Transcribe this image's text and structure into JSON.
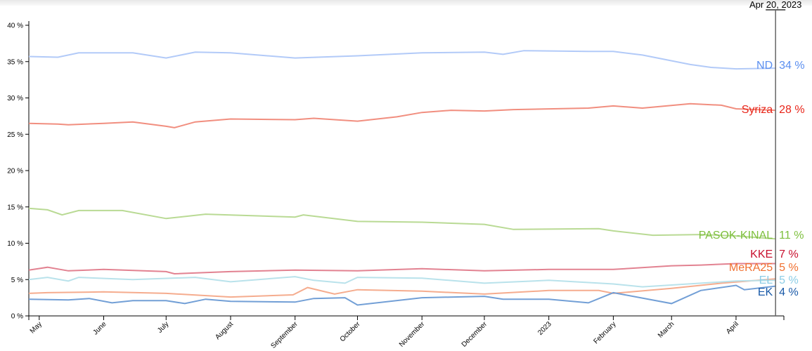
{
  "chart_data": {
    "type": "line",
    "title": "",
    "xlabel": "",
    "ylabel": "",
    "ylim": [
      0,
      40
    ],
    "xlim": [
      "2022-04-26",
      "2023-04-24"
    ],
    "grid": false,
    "y_ticks": [
      "0 %",
      "5 %",
      "10 %",
      "15 %",
      "20 %",
      "25 %",
      "30 %",
      "35 %",
      "40 %"
    ],
    "x_ticks": [
      {
        "date": "2022-05-01",
        "label": "May"
      },
      {
        "date": "2022-06-01",
        "label": "June"
      },
      {
        "date": "2022-07-01",
        "label": "July"
      },
      {
        "date": "2022-08-01",
        "label": "August"
      },
      {
        "date": "2022-09-01",
        "label": "September"
      },
      {
        "date": "2022-10-01",
        "label": "October"
      },
      {
        "date": "2022-11-01",
        "label": "November"
      },
      {
        "date": "2022-12-01",
        "label": "December"
      },
      {
        "date": "2023-01-01",
        "label": "2023"
      },
      {
        "date": "2023-02-01",
        "label": "February"
      },
      {
        "date": "2023-03-01",
        "label": "March"
      },
      {
        "date": "2023-04-01",
        "label": "April"
      }
    ],
    "marker": {
      "date": "2023-04-20",
      "label": "Apr 20, 2023"
    },
    "series": [
      {
        "name": "ND",
        "final_label": "34 %",
        "label_color": "#5b8ff0",
        "line_color": "#aec7f8",
        "points": [
          [
            "2022-04-26",
            35.7
          ],
          [
            "2022-05-10",
            35.6
          ],
          [
            "2022-05-20",
            36.2
          ],
          [
            "2022-06-15",
            36.2
          ],
          [
            "2022-07-01",
            35.5
          ],
          [
            "2022-07-15",
            36.3
          ],
          [
            "2022-08-01",
            36.2
          ],
          [
            "2022-09-01",
            35.5
          ],
          [
            "2022-10-01",
            35.8
          ],
          [
            "2022-11-01",
            36.2
          ],
          [
            "2022-12-01",
            36.3
          ],
          [
            "2022-12-10",
            36.0
          ],
          [
            "2022-12-20",
            36.5
          ],
          [
            "2023-01-20",
            36.4
          ],
          [
            "2023-02-01",
            36.4
          ],
          [
            "2023-02-15",
            35.9
          ],
          [
            "2023-03-10",
            34.6
          ],
          [
            "2023-03-20",
            34.2
          ],
          [
            "2023-04-01",
            34.0
          ],
          [
            "2023-04-20",
            34.1
          ]
        ]
      },
      {
        "name": "Syriza",
        "final_label": "28 %",
        "label_color": "#e8251a",
        "line_color": "#f08878",
        "points": [
          [
            "2022-04-26",
            26.5
          ],
          [
            "2022-05-10",
            26.4
          ],
          [
            "2022-05-15",
            26.3
          ],
          [
            "2022-06-01",
            26.5
          ],
          [
            "2022-06-15",
            26.7
          ],
          [
            "2022-07-01",
            26.1
          ],
          [
            "2022-07-05",
            25.9
          ],
          [
            "2022-07-15",
            26.7
          ],
          [
            "2022-08-01",
            27.1
          ],
          [
            "2022-09-01",
            27.0
          ],
          [
            "2022-09-10",
            27.2
          ],
          [
            "2022-10-01",
            26.8
          ],
          [
            "2022-10-20",
            27.4
          ],
          [
            "2022-11-01",
            28.0
          ],
          [
            "2022-11-15",
            28.3
          ],
          [
            "2022-12-01",
            28.2
          ],
          [
            "2022-12-15",
            28.4
          ],
          [
            "2023-01-20",
            28.6
          ],
          [
            "2023-02-01",
            28.9
          ],
          [
            "2023-02-15",
            28.6
          ],
          [
            "2023-03-10",
            29.2
          ],
          [
            "2023-03-25",
            29.0
          ],
          [
            "2023-04-01",
            28.5
          ],
          [
            "2023-04-20",
            28.3
          ]
        ]
      },
      {
        "name": "PASOK-KINAL",
        "final_label": "11 %",
        "label_color": "#7dbf3c",
        "line_color": "#b5d88e",
        "points": [
          [
            "2022-04-26",
            14.8
          ],
          [
            "2022-05-05",
            14.6
          ],
          [
            "2022-05-12",
            13.9
          ],
          [
            "2022-05-20",
            14.5
          ],
          [
            "2022-06-10",
            14.5
          ],
          [
            "2022-07-01",
            13.4
          ],
          [
            "2022-07-20",
            14.0
          ],
          [
            "2022-09-01",
            13.6
          ],
          [
            "2022-09-05",
            13.9
          ],
          [
            "2022-10-01",
            13.0
          ],
          [
            "2022-11-01",
            12.9
          ],
          [
            "2022-12-01",
            12.6
          ],
          [
            "2022-12-15",
            11.9
          ],
          [
            "2023-01-25",
            12.0
          ],
          [
            "2023-02-01",
            11.7
          ],
          [
            "2023-02-20",
            11.1
          ],
          [
            "2023-03-15",
            11.2
          ],
          [
            "2023-04-01",
            11.0
          ],
          [
            "2023-04-20",
            10.6
          ]
        ]
      },
      {
        "name": "KKE",
        "final_label": "7 %",
        "label_color": "#c8102e",
        "line_color": "#e07b8b",
        "points": [
          [
            "2022-04-26",
            6.3
          ],
          [
            "2022-05-05",
            6.7
          ],
          [
            "2022-05-15",
            6.2
          ],
          [
            "2022-06-01",
            6.4
          ],
          [
            "2022-07-01",
            6.1
          ],
          [
            "2022-07-05",
            5.8
          ],
          [
            "2022-08-01",
            6.1
          ],
          [
            "2022-09-01",
            6.3
          ],
          [
            "2022-10-01",
            6.2
          ],
          [
            "2022-11-01",
            6.5
          ],
          [
            "2022-12-01",
            6.2
          ],
          [
            "2023-01-01",
            6.4
          ],
          [
            "2023-02-01",
            6.4
          ],
          [
            "2023-03-01",
            6.9
          ],
          [
            "2023-03-15",
            7.0
          ],
          [
            "2023-04-01",
            7.2
          ],
          [
            "2023-04-20",
            7.2
          ]
        ]
      },
      {
        "name": "MeRA25",
        "final_label": "5 %",
        "label_color": "#f07030",
        "line_color": "#f4a888",
        "points": [
          [
            "2022-04-26",
            3.1
          ],
          [
            "2022-05-05",
            3.2
          ],
          [
            "2022-06-01",
            3.3
          ],
          [
            "2022-07-01",
            3.1
          ],
          [
            "2022-08-01",
            2.6
          ],
          [
            "2022-08-31",
            2.9
          ],
          [
            "2022-09-07",
            3.9
          ],
          [
            "2022-09-20",
            3.0
          ],
          [
            "2022-10-01",
            3.6
          ],
          [
            "2022-11-01",
            3.4
          ],
          [
            "2022-12-01",
            3.0
          ],
          [
            "2023-01-01",
            3.5
          ],
          [
            "2023-01-25",
            3.5
          ],
          [
            "2023-02-01",
            3.1
          ],
          [
            "2023-03-01",
            3.8
          ],
          [
            "2023-03-25",
            4.5
          ],
          [
            "2023-04-20",
            5.1
          ]
        ]
      },
      {
        "name": "EL",
        "final_label": "5 %",
        "label_color": "#8ccde6",
        "line_color": "#b5e0ea",
        "points": [
          [
            "2022-04-26",
            5.0
          ],
          [
            "2022-05-05",
            5.3
          ],
          [
            "2022-05-15",
            4.8
          ],
          [
            "2022-05-20",
            5.3
          ],
          [
            "2022-06-15",
            5.0
          ],
          [
            "2022-07-15",
            5.3
          ],
          [
            "2022-08-01",
            4.7
          ],
          [
            "2022-09-01",
            5.4
          ],
          [
            "2022-09-10",
            4.9
          ],
          [
            "2022-09-25",
            4.5
          ],
          [
            "2022-10-01",
            5.3
          ],
          [
            "2022-11-01",
            5.2
          ],
          [
            "2022-12-01",
            4.5
          ],
          [
            "2023-01-01",
            4.9
          ],
          [
            "2023-02-01",
            4.4
          ],
          [
            "2023-02-15",
            4.0
          ],
          [
            "2023-03-15",
            4.5
          ],
          [
            "2023-04-01",
            4.8
          ],
          [
            "2023-04-20",
            4.9
          ]
        ]
      },
      {
        "name": "EK",
        "final_label": "4 %",
        "label_color": "#1a5aa8",
        "line_color": "#6a9ad4",
        "points": [
          [
            "2022-04-26",
            2.3
          ],
          [
            "2022-05-15",
            2.2
          ],
          [
            "2022-05-25",
            2.4
          ],
          [
            "2022-06-05",
            1.8
          ],
          [
            "2022-06-15",
            2.1
          ],
          [
            "2022-07-01",
            2.1
          ],
          [
            "2022-07-10",
            1.7
          ],
          [
            "2022-07-20",
            2.3
          ],
          [
            "2022-08-01",
            2.0
          ],
          [
            "2022-09-01",
            1.9
          ],
          [
            "2022-09-10",
            2.4
          ],
          [
            "2022-09-25",
            2.5
          ],
          [
            "2022-10-01",
            1.5
          ],
          [
            "2022-11-01",
            2.5
          ],
          [
            "2022-12-01",
            2.7
          ],
          [
            "2022-12-10",
            2.3
          ],
          [
            "2023-01-01",
            2.3
          ],
          [
            "2023-01-20",
            1.8
          ],
          [
            "2023-02-01",
            3.2
          ],
          [
            "2023-03-01",
            1.7
          ],
          [
            "2023-03-15",
            3.5
          ],
          [
            "2023-04-01",
            4.2
          ],
          [
            "2023-04-05",
            3.6
          ],
          [
            "2023-04-20",
            4.1
          ]
        ]
      }
    ]
  }
}
